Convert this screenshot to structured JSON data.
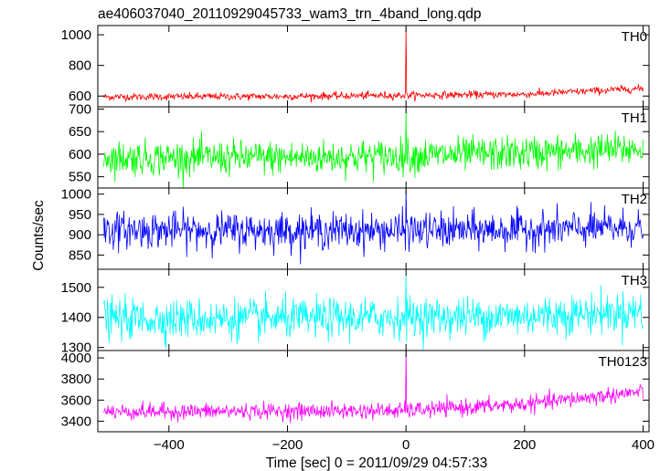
{
  "chart_data": {
    "type": "line",
    "title": "ae406037040_20110929045733_wam3_trn_4band_long.qdp",
    "xlabel": "Time [sec] 0 = 2011/09/29 04:57:33",
    "ylabel": "Counts/sec",
    "xlim": [
      -520,
      410
    ],
    "xticks": [
      -400,
      -200,
      0,
      200,
      400
    ],
    "xtick_labels": [
      "−400",
      "−200",
      "0",
      "200",
      "400"
    ],
    "x_start": -510,
    "x_end": 400,
    "panels": [
      {
        "name": "TH0",
        "color": "#ff0000",
        "ylim": [
          530,
          1060
        ],
        "yticks": [
          600,
          800,
          1000
        ],
        "baseline": [
          [
            -510,
            595
          ],
          [
            -200,
            598
          ],
          [
            0,
            605
          ],
          [
            200,
            612
          ],
          [
            400,
            650
          ]
        ],
        "noise_sd": 12,
        "spike": {
          "x": 0,
          "y": 1060
        }
      },
      {
        "name": "TH1",
        "color": "#00ff00",
        "ylim": [
          525,
          705
        ],
        "yticks": [
          550,
          600,
          650,
          700
        ],
        "baseline": [
          [
            -510,
            592
          ],
          [
            -200,
            592
          ],
          [
            0,
            596
          ],
          [
            200,
            602
          ],
          [
            400,
            612
          ]
        ],
        "noise_sd": 19,
        "spike": {
          "x": 0,
          "y": 700
        }
      },
      {
        "name": "TH2",
        "color": "#0000ff",
        "ylim": [
          815,
          1015
        ],
        "yticks": [
          850,
          900,
          950,
          1000
        ],
        "baseline": [
          [
            -510,
            912
          ],
          [
            -200,
            910
          ],
          [
            0,
            910
          ],
          [
            200,
            912
          ],
          [
            400,
            918
          ]
        ],
        "noise_sd": 22,
        "spike": {
          "x": 0,
          "y": 1012
        }
      },
      {
        "name": "TH3",
        "color": "#00ffff",
        "ylim": [
          1290,
          1560
        ],
        "yticks": [
          1300,
          1400,
          1500
        ],
        "baseline": [
          [
            -510,
            1395
          ],
          [
            -200,
            1395
          ],
          [
            0,
            1400
          ],
          [
            200,
            1405
          ],
          [
            400,
            1420
          ]
        ],
        "noise_sd": 33,
        "spike": {
          "x": 0,
          "y": 1545
        }
      },
      {
        "name": "TH0123",
        "color": "#ff00ff",
        "ylim": [
          3300,
          4070
        ],
        "yticks": [
          3400,
          3600,
          3800,
          4000
        ],
        "baseline": [
          [
            -510,
            3490
          ],
          [
            -200,
            3495
          ],
          [
            0,
            3500
          ],
          [
            200,
            3560
          ],
          [
            400,
            3680
          ]
        ],
        "noise_sd": 38,
        "spike": {
          "x": 0,
          "y": 4070
        }
      }
    ]
  }
}
